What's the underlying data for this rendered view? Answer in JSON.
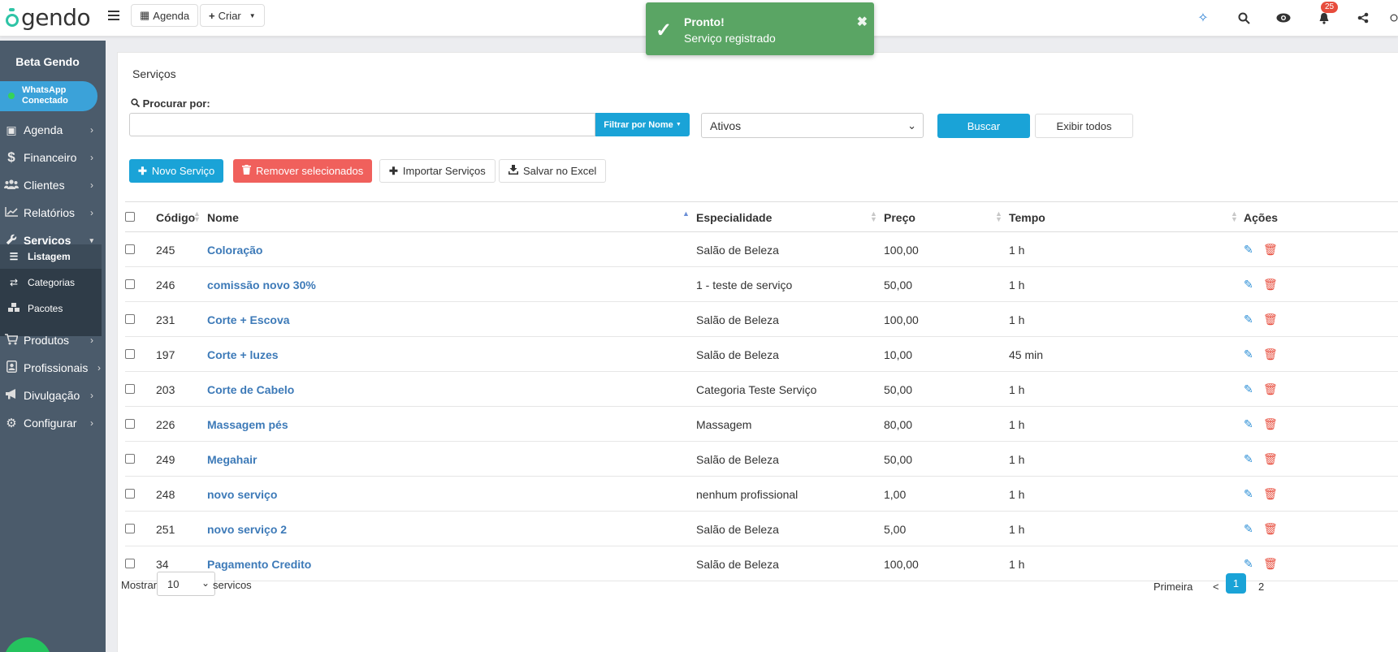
{
  "app": {
    "logo_text": "gendo"
  },
  "topbar": {
    "agenda_label": "Agenda",
    "criar_label": "Criar",
    "notification_count": "25"
  },
  "toast": {
    "title": "Pronto!",
    "message": "Serviço registrado",
    "close": "✖"
  },
  "sidebar": {
    "title": "Beta Gendo",
    "whatsapp_line1": "WhatsApp",
    "whatsapp_line2": "Conectado",
    "items": [
      {
        "label": "Agenda",
        "icon": "calendar-check-icon"
      },
      {
        "label": "Financeiro",
        "icon": "dollar-icon"
      },
      {
        "label": "Clientes",
        "icon": "users-icon"
      },
      {
        "label": "Relatórios",
        "icon": "chart-line-icon"
      },
      {
        "label": "Serviços",
        "icon": "wrench-icon"
      },
      {
        "label": "Produtos",
        "icon": "cart-icon"
      },
      {
        "label": "Profissionais",
        "icon": "id-badge-icon"
      },
      {
        "label": "Divulgação",
        "icon": "megaphone-icon"
      },
      {
        "label": "Configurar",
        "icon": "gear-icon"
      }
    ],
    "submenu": [
      {
        "label": "Listagem",
        "icon": "list-icon"
      },
      {
        "label": "Categorias",
        "icon": "signpost-icon"
      },
      {
        "label": "Pacotes",
        "icon": "cubes-icon"
      }
    ]
  },
  "main": {
    "title": "Serviços",
    "search_label": "Procurar por:",
    "search_value": "",
    "filter_button": "Filtrar por Nome",
    "status_select": "Ativos",
    "buscar": "Buscar",
    "exibir_todos": "Exibir todos",
    "actions": {
      "novo": "Novo Serviço",
      "remover": "Remover selecionados",
      "importar": "Importar Serviços",
      "salvar": "Salvar no Excel"
    },
    "columns": [
      "Código",
      "Nome",
      "Especialidade",
      "Preço",
      "Tempo",
      "Ações"
    ],
    "rows": [
      {
        "codigo": "245",
        "nome": "Coloração",
        "especialidade": "Salão de Beleza",
        "preco": "100,00",
        "tempo": "1 h"
      },
      {
        "codigo": "246",
        "nome": "comissão novo 30%",
        "especialidade": "1 - teste de serviço",
        "preco": "50,00",
        "tempo": "1 h"
      },
      {
        "codigo": "231",
        "nome": "Corte + Escova",
        "especialidade": "Salão de Beleza",
        "preco": "100,00",
        "tempo": "1 h"
      },
      {
        "codigo": "197",
        "nome": "Corte + luzes",
        "especialidade": "Salão de Beleza",
        "preco": "10,00",
        "tempo": "45 min"
      },
      {
        "codigo": "203",
        "nome": "Corte de Cabelo",
        "especialidade": "Categoria Teste Serviço",
        "preco": "50,00",
        "tempo": "1 h"
      },
      {
        "codigo": "226",
        "nome": "Massagem pés",
        "especialidade": "Massagem",
        "preco": "80,00",
        "tempo": "1 h"
      },
      {
        "codigo": "249",
        "nome": "Megahair",
        "especialidade": "Salão de Beleza",
        "preco": "50,00",
        "tempo": "1 h"
      },
      {
        "codigo": "248",
        "nome": "novo serviço",
        "especialidade": "nenhum profissional",
        "preco": "1,00",
        "tempo": "1 h"
      },
      {
        "codigo": "251",
        "nome": "novo serviço 2",
        "especialidade": "Salão de Beleza",
        "preco": "5,00",
        "tempo": "1 h"
      },
      {
        "codigo": "34",
        "nome": "Pagamento Credito",
        "especialidade": "Salão de Beleza",
        "preco": "100,00",
        "tempo": "1 h"
      }
    ],
    "footer": {
      "mostrar": "Mostrar",
      "per_page": "10",
      "servicos": "servicos",
      "primeira": "Primeira",
      "prev": "<",
      "page_current": "1",
      "page_next": "2"
    }
  },
  "colors": {
    "accent": "#1aa3d7",
    "danger": "#f0605c",
    "sidebar": "#4b5b6b",
    "toast": "#5aa564",
    "link": "#3d7ab8"
  }
}
